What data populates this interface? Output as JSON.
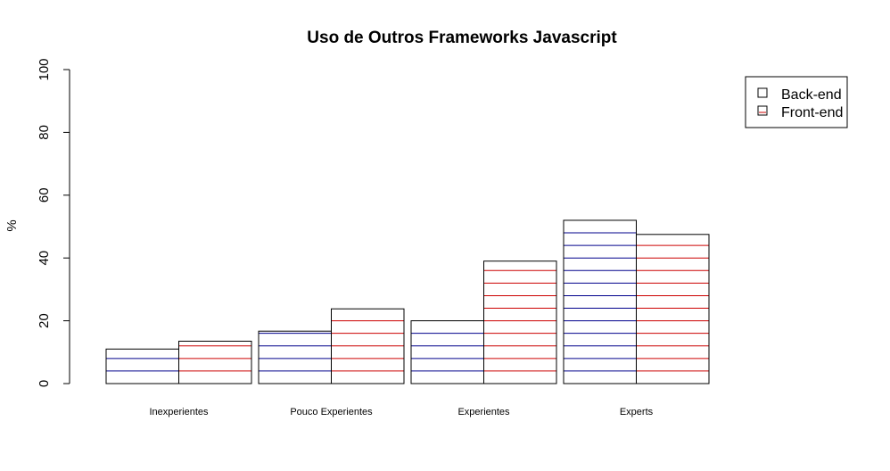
{
  "chart_data": {
    "type": "bar",
    "title": "Uso de Outros Frameworks Javascript",
    "xlabel": "",
    "ylabel": "%",
    "ylim": [
      0,
      100
    ],
    "yticks": [
      "0",
      "20",
      "40",
      "60",
      "80",
      "100"
    ],
    "categories": [
      "Inexperientes",
      "Pouco Experientes",
      "Experientes",
      "Experts"
    ],
    "series": [
      {
        "name": "Back-end",
        "values": [
          11,
          16.7,
          20,
          52
        ],
        "hatch_color": "#00008b"
      },
      {
        "name": "Front-end",
        "values": [
          13.5,
          23.8,
          39,
          47.5
        ],
        "hatch_color": "#cc0000"
      }
    ],
    "legend_position": "top-right",
    "grid": false,
    "hatch_step": 4
  }
}
